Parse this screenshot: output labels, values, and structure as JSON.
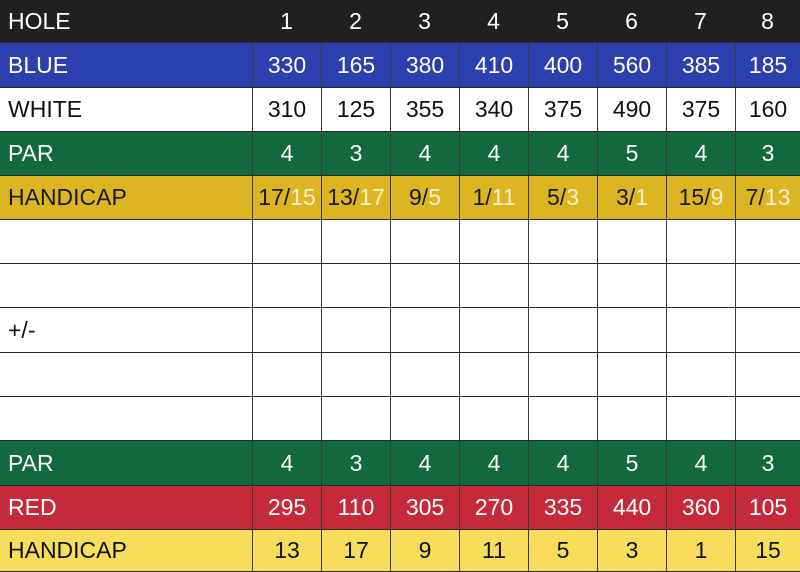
{
  "colors": {
    "header": "#221f1f",
    "blue": "#2b3fae",
    "white": "#ffffff",
    "green": "#11693d",
    "gold": "#ddb522",
    "red": "#c52a3b",
    "light_yellow": "#f6de5c"
  },
  "rows": [
    {
      "label": "HOLE",
      "style": "header",
      "values": [
        "1",
        "2",
        "3",
        "4",
        "5",
        "6",
        "7",
        "8"
      ]
    },
    {
      "label": "BLUE",
      "style": "blue",
      "values": [
        "330",
        "165",
        "380",
        "410",
        "400",
        "560",
        "385",
        "185"
      ]
    },
    {
      "label": "WHITE",
      "style": "white",
      "values": [
        "310",
        "125",
        "355",
        "340",
        "375",
        "490",
        "375",
        "160"
      ]
    },
    {
      "label": "PAR",
      "style": "green",
      "values": [
        "4",
        "3",
        "4",
        "4",
        "4",
        "5",
        "4",
        "3"
      ]
    },
    {
      "label": "HANDICAP",
      "style": "gold",
      "values": [
        "17/",
        "13/",
        "9/",
        "1/",
        "5/",
        "3/",
        "15/",
        "7/"
      ],
      "alt_values": [
        "15",
        "17",
        "5",
        "11",
        "3",
        "1",
        "9",
        "13"
      ]
    },
    {
      "label": "",
      "style": "blank",
      "values": [
        "",
        "",
        "",
        "",
        "",
        "",
        "",
        ""
      ]
    },
    {
      "label": "",
      "style": "blank",
      "values": [
        "",
        "",
        "",
        "",
        "",
        "",
        "",
        ""
      ]
    },
    {
      "label": "+/-",
      "style": "blank",
      "values": [
        "",
        "",
        "",
        "",
        "",
        "",
        "",
        ""
      ]
    },
    {
      "label": "",
      "style": "blank",
      "values": [
        "",
        "",
        "",
        "",
        "",
        "",
        "",
        ""
      ]
    },
    {
      "label": "",
      "style": "blank",
      "values": [
        "",
        "",
        "",
        "",
        "",
        "",
        "",
        ""
      ]
    },
    {
      "label": "PAR",
      "style": "green",
      "values": [
        "4",
        "3",
        "4",
        "4",
        "4",
        "5",
        "4",
        "3"
      ]
    },
    {
      "label": "RED",
      "style": "red",
      "values": [
        "295",
        "110",
        "305",
        "270",
        "335",
        "440",
        "360",
        "105"
      ]
    },
    {
      "label": "HANDICAP",
      "style": "light_yellow",
      "values": [
        "13",
        "17",
        "9",
        "11",
        "5",
        "3",
        "1",
        "15"
      ]
    }
  ]
}
